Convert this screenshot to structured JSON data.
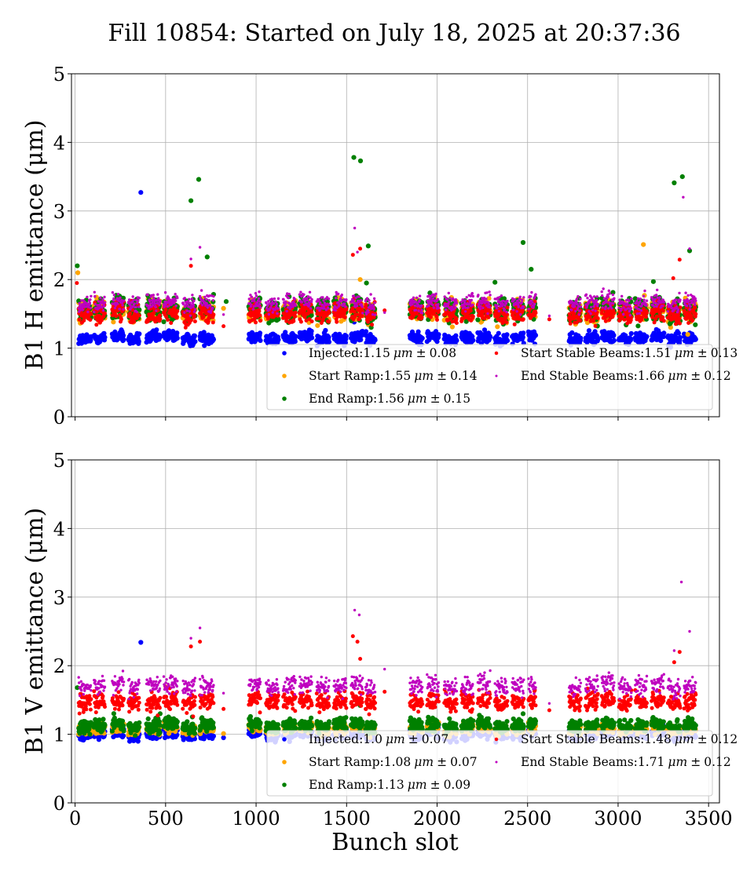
{
  "chart_data": {
    "type": "scatter",
    "title": "Fill 10854: Started on July 18, 2025 at 20:37:36",
    "xlabel": "Bunch slot",
    "xlim": [
      -20,
      3560
    ],
    "xticks": [
      0,
      500,
      1000,
      1500,
      2000,
      2500,
      3000,
      3500
    ],
    "yticks": [
      0,
      1,
      2,
      3,
      4,
      5
    ],
    "grid": true,
    "trains": [
      [
        20,
        90
      ],
      [
        105,
        165
      ],
      [
        205,
        270
      ],
      [
        295,
        355
      ],
      [
        395,
        470
      ],
      [
        490,
        565
      ],
      [
        595,
        665
      ],
      [
        690,
        765
      ],
      [
        960,
        1025
      ],
      [
        1055,
        1125
      ],
      [
        1150,
        1220
      ],
      [
        1240,
        1310
      ],
      [
        1335,
        1405
      ],
      [
        1430,
        1500
      ],
      [
        1525,
        1590
      ],
      [
        1605,
        1660
      ],
      [
        1850,
        1920
      ],
      [
        1945,
        2010
      ],
      [
        2040,
        2110
      ],
      [
        2135,
        2200
      ],
      [
        2225,
        2295
      ],
      [
        2320,
        2390
      ],
      [
        2415,
        2480
      ],
      [
        2505,
        2545
      ],
      [
        2730,
        2795
      ],
      [
        2820,
        2890
      ],
      [
        2910,
        2980
      ],
      [
        3005,
        3075
      ],
      [
        3095,
        3160
      ],
      [
        3185,
        3255
      ],
      [
        3275,
        3345
      ],
      [
        3365,
        3430
      ]
    ],
    "panels": [
      {
        "id": "h",
        "ylabel": "B1 H emittance (μm)",
        "ylim": [
          0,
          5
        ],
        "legend": "lower-right",
        "series": [
          {
            "label": "Injected:",
            "value": "1.15",
            "unit": "μm",
            "pm": "±",
            "err": "0.08",
            "color": "#0000ff",
            "mean": 1.15,
            "sd": 0.08,
            "size": "large",
            "outliers": [
              [
                363,
                3.27
              ],
              [
                1542,
                1.38
              ],
              [
                3320,
                1.21
              ]
            ]
          },
          {
            "label": "Start Ramp:",
            "value": "1.55",
            "unit": "μm",
            "pm": "±",
            "err": "0.14",
            "color": "#ffa500",
            "mean": 1.55,
            "sd": 0.14,
            "size": "large",
            "outliers": [
              [
                15,
                2.1
              ],
              [
                3140,
                2.51
              ],
              [
                1575,
                2.0
              ],
              [
                3385,
                1.2
              ],
              [
                820,
                1.58
              ]
            ]
          },
          {
            "label": "End Ramp:",
            "value": "1.56",
            "unit": "μm",
            "pm": "±",
            "err": "0.15",
            "color": "#008000",
            "mean": 1.56,
            "sd": 0.15,
            "size": "large",
            "outliers": [
              [
                12,
                2.2
              ],
              [
                640,
                3.15
              ],
              [
                683,
                3.46
              ],
              [
                1540,
                3.78
              ],
              [
                1577,
                3.73
              ],
              [
                1620,
                2.49
              ],
              [
                2475,
                2.54
              ],
              [
                2520,
                2.15
              ],
              [
                3310,
                3.41
              ],
              [
                3355,
                3.5
              ],
              [
                3395,
                2.42
              ],
              [
                3195,
                1.97
              ],
              [
                2320,
                1.96
              ],
              [
                730,
                2.33
              ],
              [
                835,
                1.68
              ],
              [
                1610,
                1.95
              ]
            ]
          },
          {
            "label": "Start Stable Beams:",
            "value": "1.51",
            "unit": "μm",
            "pm": "±",
            "err": "0.13",
            "color": "#ff0000",
            "mean": 1.51,
            "sd": 0.13,
            "size": "medium",
            "outliers": [
              [
                10,
                1.95
              ],
              [
                640,
                2.2
              ],
              [
                1535,
                2.36
              ],
              [
                1575,
                2.45
              ],
              [
                3340,
                2.29
              ],
              [
                3305,
                2.02
              ],
              [
                820,
                1.32
              ],
              [
                2620,
                1.42
              ],
              [
                1710,
                1.55
              ]
            ]
          },
          {
            "label": "End Stable Beams:",
            "value": "1.66",
            "unit": "μm",
            "pm": "±",
            "err": "0.12",
            "color": "#bf00bf",
            "mean": 1.66,
            "sd": 0.12,
            "size": "small",
            "outliers": [
              [
                1545,
                2.75
              ],
              [
                690,
                2.47
              ],
              [
                3360,
                3.2
              ],
              [
                3395,
                2.45
              ],
              [
                1560,
                2.4
              ],
              [
                640,
                2.3
              ],
              [
                820,
                1.49
              ],
              [
                1710,
                1.52
              ],
              [
                2620,
                1.47
              ]
            ]
          }
        ]
      },
      {
        "id": "v",
        "ylabel": "B1 V emittance (μm)",
        "ylim": [
          0,
          5
        ],
        "legend": "lower-right",
        "series": [
          {
            "label": "Injected:",
            "value": "1.0",
            "unit": "μm",
            "pm": "±",
            "err": "0.07",
            "color": "#0000ff",
            "mean": 1.0,
            "sd": 0.07,
            "size": "large",
            "outliers": [
              [
                363,
                2.34
              ],
              [
                820,
                0.95
              ]
            ]
          },
          {
            "label": "Start Ramp:",
            "value": "1.08",
            "unit": "μm",
            "pm": "±",
            "err": "0.07",
            "color": "#ffa500",
            "mean": 1.08,
            "sd": 0.07,
            "size": "large",
            "outliers": [
              [
                820,
                1.01
              ],
              [
                3385,
                1.08
              ]
            ]
          },
          {
            "label": "End Ramp:",
            "value": "1.13",
            "unit": "μm",
            "pm": "±",
            "err": "0.09",
            "color": "#008000",
            "mean": 1.13,
            "sd": 0.09,
            "size": "large",
            "outliers": [
              [
                12,
                1.68
              ],
              [
                1575,
                1.42
              ],
              [
                470,
                1.3
              ],
              [
                2475,
                1.3
              ]
            ]
          },
          {
            "label": "Start Stable Beams:",
            "value": "1.48",
            "unit": "μm",
            "pm": "±",
            "err": "0.12",
            "color": "#ff0000",
            "mean": 1.48,
            "sd": 0.12,
            "size": "medium",
            "outliers": [
              [
                1535,
                2.43
              ],
              [
                1560,
                2.35
              ],
              [
                1575,
                2.1
              ],
              [
                640,
                2.28
              ],
              [
                690,
                2.35
              ],
              [
                3310,
                2.05
              ],
              [
                3340,
                2.2
              ],
              [
                820,
                1.37
              ],
              [
                1710,
                1.62
              ],
              [
                2620,
                1.35
              ]
            ]
          },
          {
            "label": "End Stable Beams:",
            "value": "1.71",
            "unit": "μm",
            "pm": "±",
            "err": "0.12",
            "color": "#bf00bf",
            "mean": 1.71,
            "sd": 0.12,
            "size": "small",
            "outliers": [
              [
                1545,
                2.81
              ],
              [
                1570,
                2.74
              ],
              [
                3350,
                3.22
              ],
              [
                3395,
                2.5
              ],
              [
                690,
                2.55
              ],
              [
                640,
                2.4
              ],
              [
                3310,
                2.22
              ],
              [
                820,
                1.6
              ],
              [
                1710,
                1.95
              ],
              [
                2620,
                1.45
              ]
            ]
          }
        ]
      }
    ]
  }
}
